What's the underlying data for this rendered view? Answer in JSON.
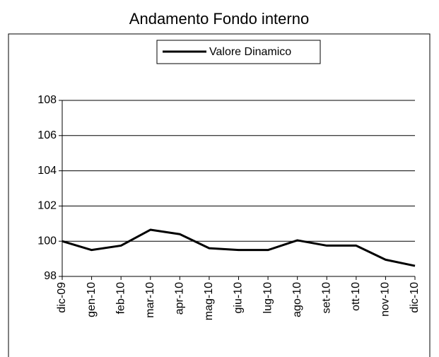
{
  "chart_data": {
    "type": "line",
    "title": "Andamento Fondo interno",
    "categories": [
      "dic-09",
      "gen-10",
      "feb-10",
      "mar-10",
      "apr-10",
      "mag-10",
      "giu-10",
      "lug-10",
      "ago-10",
      "set-10",
      "ott-10",
      "nov-10",
      "dic-10"
    ],
    "series": [
      {
        "name": "Valore Dinamico",
        "color": "#000000",
        "values": [
          100,
          99.5,
          99.75,
          100.65,
          100.4,
          99.6,
          99.5,
          99.5,
          100.05,
          99.75,
          99.75,
          98.95,
          98.6
        ]
      }
    ],
    "ylim": [
      98,
      108
    ],
    "yticks": [
      98,
      100,
      102,
      104,
      106,
      108
    ],
    "grid": true,
    "legend": "top"
  }
}
